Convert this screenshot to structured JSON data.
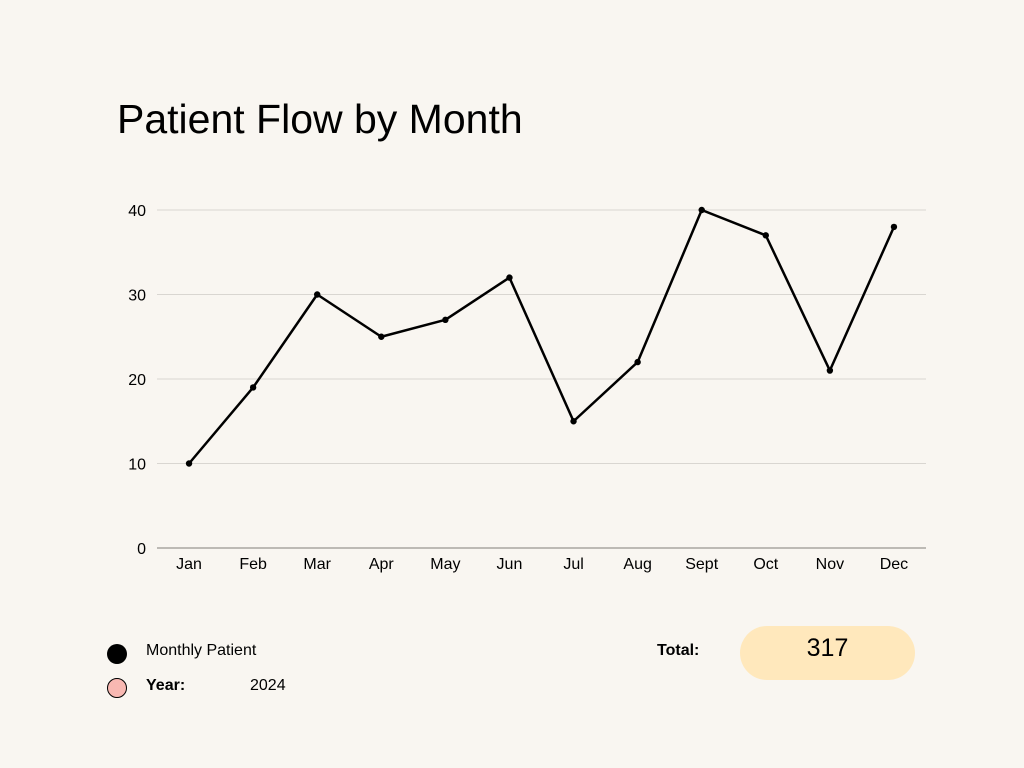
{
  "title": "Patient Flow by Month",
  "chart_data": {
    "type": "line",
    "title": "Patient Flow by Month",
    "categories": [
      "Jan",
      "Feb",
      "Mar",
      "Apr",
      "May",
      "Jun",
      "Jul",
      "Aug",
      "Sept",
      "Oct",
      "Nov",
      "Dec"
    ],
    "series": [
      {
        "name": "Monthly Patient",
        "values": [
          10,
          19,
          30,
          25,
          27,
          32,
          15,
          22,
          40,
          37,
          21,
          38
        ],
        "color": "#000000"
      }
    ],
    "yticks": [
      0,
      10,
      20,
      30,
      40
    ],
    "ylim": [
      0,
      40
    ],
    "grid": true,
    "legend_position": "bottom-left"
  },
  "legend": {
    "series_label": "Monthly Patient",
    "series_color": "#000000",
    "year_label": "Year:",
    "year_value": "2024",
    "year_color": "#f8b8b2"
  },
  "total": {
    "label": "Total:",
    "value": "317",
    "pill_color": "#ffe8bc"
  },
  "colors": {
    "background": "#f9f6f1",
    "gridline": "#d9d6d1",
    "axis": "#a9a6a1"
  }
}
